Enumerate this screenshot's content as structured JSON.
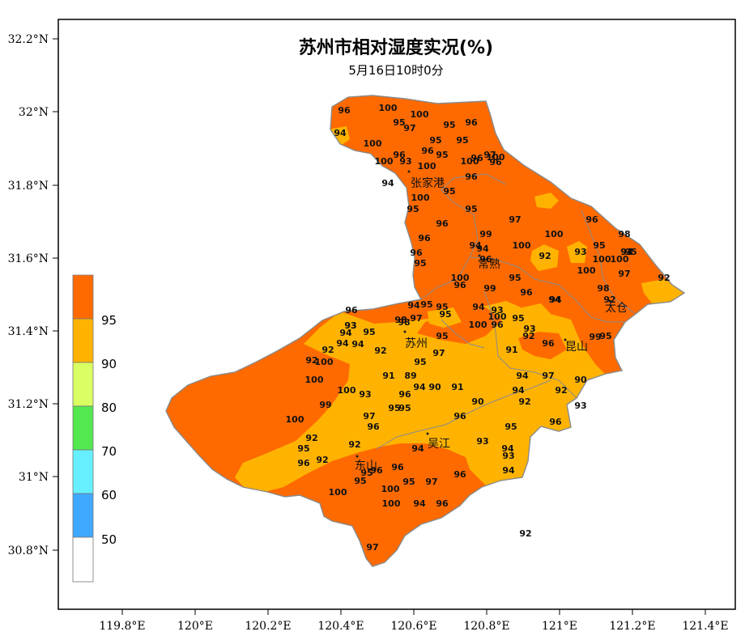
{
  "title": "苏州市相对湿度实况(%)",
  "subtitle": "5月16日10时0分",
  "axes": {
    "x_ticks": [
      "119.8°E",
      "120°E",
      "120.2°E",
      "120.4°E",
      "120.6°E",
      "120.8°E",
      "121°E",
      "121.2°E",
      "121.4°E"
    ],
    "y_ticks": [
      "32.2°N",
      "32°N",
      "31.8°N",
      "31.6°N",
      "31.4°N",
      "31.2°N",
      "31°N",
      "30.8°N"
    ]
  },
  "legend": {
    "labels": [
      "95",
      "90",
      "80",
      "70",
      "60",
      "50"
    ],
    "colors": [
      "#fe6a00",
      "#ffb300",
      "#d9ff63",
      "#53e84f",
      "#66f0ff",
      "#3ea9ff",
      "#ffffff"
    ]
  },
  "colors": {
    "band_95": "#fe6a00",
    "band_90": "#ffb300",
    "boundary": "#8a8a8a"
  },
  "cities": [
    "张家港",
    "常熟",
    "太仓",
    "苏州",
    "昆山",
    "吴江",
    "东山"
  ],
  "stations": [
    {
      "v": "96"
    },
    {
      "v": "100"
    },
    {
      "v": "100"
    },
    {
      "v": "95"
    },
    {
      "v": "97"
    },
    {
      "v": "95"
    },
    {
      "v": "96"
    },
    {
      "v": "94"
    },
    {
      "v": "100"
    },
    {
      "v": "95"
    },
    {
      "v": "100"
    },
    {
      "v": "96"
    },
    {
      "v": "96"
    },
    {
      "v": "95"
    },
    {
      "v": "95"
    },
    {
      "v": "93"
    },
    {
      "v": "100"
    },
    {
      "v": "100"
    },
    {
      "v": "100"
    },
    {
      "v": "97"
    },
    {
      "v": "96"
    },
    {
      "v": "96"
    },
    {
      "v": "96"
    },
    {
      "v": "95"
    },
    {
      "v": "94"
    },
    {
      "v": "100"
    },
    {
      "v": "95"
    },
    {
      "v": "95"
    },
    {
      "v": "97"
    },
    {
      "v": "96"
    },
    {
      "v": "96"
    },
    {
      "v": "98"
    },
    {
      "v": "96"
    },
    {
      "v": "99"
    },
    {
      "v": "94"
    },
    {
      "v": "100"
    },
    {
      "v": "100"
    },
    {
      "v": "94"
    },
    {
      "v": "97"
    },
    {
      "v": "96"
    },
    {
      "v": "93"
    },
    {
      "v": "95"
    },
    {
      "v": "92"
    },
    {
      "v": "100"
    },
    {
      "v": "100"
    },
    {
      "v": "95"
    },
    {
      "v": "100"
    },
    {
      "v": "96"
    },
    {
      "v": "100"
    },
    {
      "v": "97"
    },
    {
      "v": "92"
    },
    {
      "v": "95"
    },
    {
      "v": "96"
    },
    {
      "v": "99"
    },
    {
      "v": "98"
    },
    {
      "v": "94"
    },
    {
      "v": "92"
    },
    {
      "v": "96"
    },
    {
      "v": "95"
    },
    {
      "v": "94"
    },
    {
      "v": "96"
    },
    {
      "v": "94"
    },
    {
      "v": "93"
    },
    {
      "v": "97"
    },
    {
      "v": "98"
    },
    {
      "v": "95"
    },
    {
      "v": "100"
    },
    {
      "v": "95"
    },
    {
      "v": "93"
    },
    {
      "v": "95"
    },
    {
      "v": "96"
    },
    {
      "v": "100"
    },
    {
      "v": "98"
    },
    {
      "v": "93"
    },
    {
      "v": "94"
    },
    {
      "v": "95"
    },
    {
      "v": "94"
    },
    {
      "v": "95"
    },
    {
      "v": "94"
    },
    {
      "v": "92"
    },
    {
      "v": "94"
    },
    {
      "v": "94"
    },
    {
      "v": "92"
    },
    {
      "v": "95"
    },
    {
      "v": "97"
    },
    {
      "v": "93"
    },
    {
      "v": "92"
    },
    {
      "v": "99"
    },
    {
      "v": "95"
    },
    {
      "v": "91"
    },
    {
      "v": "96"
    },
    {
      "v": "100"
    },
    {
      "v": "92"
    },
    {
      "v": "100"
    },
    {
      "v": "95"
    },
    {
      "v": "89"
    },
    {
      "v": "91"
    },
    {
      "v": "94"
    },
    {
      "v": "90"
    },
    {
      "v": "91"
    },
    {
      "v": "97"
    },
    {
      "v": "94"
    },
    {
      "v": "100"
    },
    {
      "v": "93"
    },
    {
      "v": "96"
    },
    {
      "v": "99"
    },
    {
      "v": "94"
    },
    {
      "v": "92"
    },
    {
      "v": "90"
    },
    {
      "v": "92"
    },
    {
      "v": "93"
    },
    {
      "v": "90"
    },
    {
      "v": "100"
    },
    {
      "v": "97"
    },
    {
      "v": "95"
    },
    {
      "v": "95"
    },
    {
      "v": "96"
    },
    {
      "v": "96"
    },
    {
      "v": "95"
    },
    {
      "v": "96"
    },
    {
      "v": "94"
    },
    {
      "v": "93"
    },
    {
      "v": "94"
    },
    {
      "v": "93"
    },
    {
      "v": "92"
    },
    {
      "v": "92"
    },
    {
      "v": "95"
    },
    {
      "v": "96"
    },
    {
      "v": "94"
    },
    {
      "v": "92"
    },
    {
      "v": "96"
    },
    {
      "v": "95"
    },
    {
      "v": "96"
    },
    {
      "v": "95"
    },
    {
      "v": "100"
    },
    {
      "v": "100"
    },
    {
      "v": "95"
    },
    {
      "v": "97"
    },
    {
      "v": "96"
    },
    {
      "v": "100"
    },
    {
      "v": "94"
    },
    {
      "v": "96"
    },
    {
      "v": "97"
    },
    {
      "v": "92"
    },
    {
      "v": "94"
    },
    {
      "v": "95"
    }
  ]
}
